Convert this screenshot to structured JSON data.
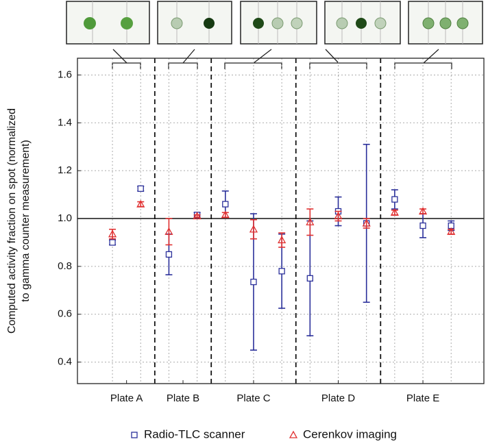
{
  "chart_data": {
    "type": "errorbar",
    "ylabel": [
      "Computed activity fraction on spot (normalized",
      "to gamma counter measurement)"
    ],
    "x": [
      1,
      2,
      3,
      4,
      5,
      6,
      7,
      8,
      9,
      10,
      11,
      12,
      13
    ],
    "xlim": [
      -0.24,
      14.16
    ],
    "xticks": [
      {
        "value": 1.5,
        "label": "Plate A"
      },
      {
        "value": 3.5,
        "label": "Plate B"
      },
      {
        "value": 6,
        "label": "Plate C"
      },
      {
        "value": 9,
        "label": "Plate D"
      },
      {
        "value": 12,
        "label": "Plate E"
      }
    ],
    "ylim": [
      0.31,
      1.67
    ],
    "yticks": [
      0.4,
      0.6,
      0.8,
      {
        "value": 1,
        "label": "1.0"
      },
      1.2,
      1.4,
      1.6
    ],
    "grid": true,
    "reference_line": 1,
    "dividers": [
      2.5,
      4.5,
      7.5,
      10.5
    ],
    "series": [
      {
        "name": "Radio-TLC scanner",
        "color": "#2a2f9a",
        "marker": "square",
        "values": [
          0.9,
          1.125,
          0.85,
          1.015,
          1.06,
          0.735,
          0.78,
          0.75,
          1.03,
          0.98,
          1.08,
          0.97,
          0.97
        ],
        "errors": [
          0.01,
          0.01,
          0.085,
          0.01,
          0.055,
          0.285,
          0.155,
          0.24,
          0.06,
          0.33,
          0.04,
          0.05,
          0.02
        ]
      },
      {
        "name": "Cerenkov imaging",
        "color": "#e03030",
        "marker": "triangle",
        "values": [
          0.935,
          1.06,
          0.945,
          1.01,
          1.015,
          0.955,
          0.91,
          0.985,
          1.01,
          0.98,
          1.025,
          1.03,
          0.945
        ],
        "errors": [
          0.02,
          0.01,
          0.055,
          0.005,
          0.01,
          0.04,
          0.03,
          0.055,
          0.02,
          0.02,
          0.01,
          0.01,
          0.01
        ]
      }
    ],
    "legend": "bottom"
  }
}
